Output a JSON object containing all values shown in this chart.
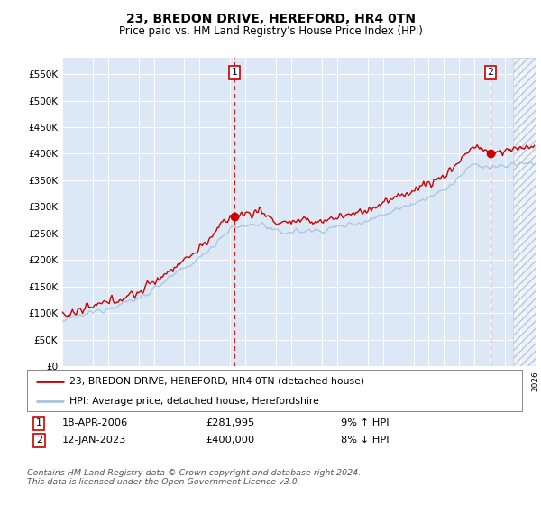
{
  "title": "23, BREDON DRIVE, HEREFORD, HR4 0TN",
  "subtitle": "Price paid vs. HM Land Registry's House Price Index (HPI)",
  "ylabel_ticks": [
    "£0",
    "£50K",
    "£100K",
    "£150K",
    "£200K",
    "£250K",
    "£300K",
    "£350K",
    "£400K",
    "£450K",
    "£500K",
    "£550K"
  ],
  "ytick_values": [
    0,
    50000,
    100000,
    150000,
    200000,
    250000,
    300000,
    350000,
    400000,
    450000,
    500000,
    550000
  ],
  "ylim": [
    0,
    580000
  ],
  "xstart_year": 1995,
  "xend_year": 2026,
  "sale1_year": 2006.29,
  "sale1_price": 281995,
  "sale2_year": 2023.04,
  "sale2_price": 400000,
  "sale1_label": "1",
  "sale2_label": "2",
  "sale1_date": "18-APR-2006",
  "sale1_amount": "£281,995",
  "sale1_hpi": "9% ↑ HPI",
  "sale2_date": "12-JAN-2023",
  "sale2_amount": "£400,000",
  "sale2_hpi": "8% ↓ HPI",
  "legend_line1": "23, BREDON DRIVE, HEREFORD, HR4 0TN (detached house)",
  "legend_line2": "HPI: Average price, detached house, Herefordshire",
  "footer": "Contains HM Land Registry data © Crown copyright and database right 2024.\nThis data is licensed under the Open Government Licence v3.0.",
  "hpi_color": "#a8c4e0",
  "property_color": "#cc0000",
  "dashed_line_color": "#cc0000",
  "background_color": "#dce8f5",
  "hatch_color": "#c8d4e4"
}
